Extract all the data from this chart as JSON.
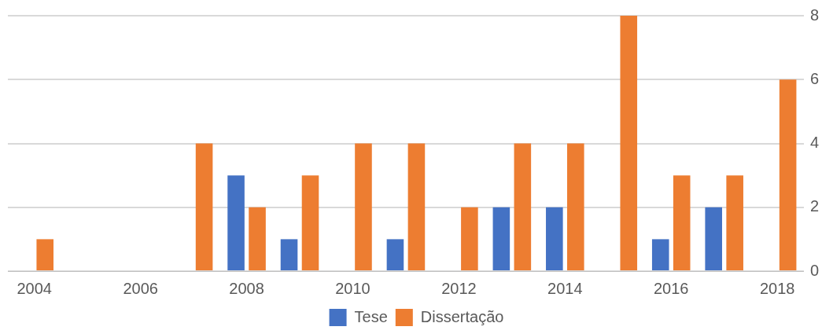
{
  "chart_data": {
    "type": "bar",
    "categories": [
      "2004",
      null,
      "2006",
      null,
      "2008",
      null,
      "2010",
      null,
      "2012",
      null,
      "2014",
      null,
      "2016",
      null,
      "2018"
    ],
    "series": [
      {
        "name": "Tese",
        "color": "#4472c4",
        "values": [
          0,
          0,
          0,
          0,
          3,
          1,
          0,
          1,
          0,
          2,
          2,
          0,
          1,
          2,
          0
        ]
      },
      {
        "name": "Dissertação",
        "color": "#ed7d31",
        "values": [
          1,
          0,
          0,
          4,
          2,
          3,
          4,
          4,
          2,
          4,
          4,
          8,
          3,
          3,
          6
        ]
      }
    ],
    "ylim": [
      0,
      8
    ],
    "yticks": [
      0,
      2,
      4,
      6,
      8
    ],
    "grid": "y",
    "legend": "bottom"
  }
}
